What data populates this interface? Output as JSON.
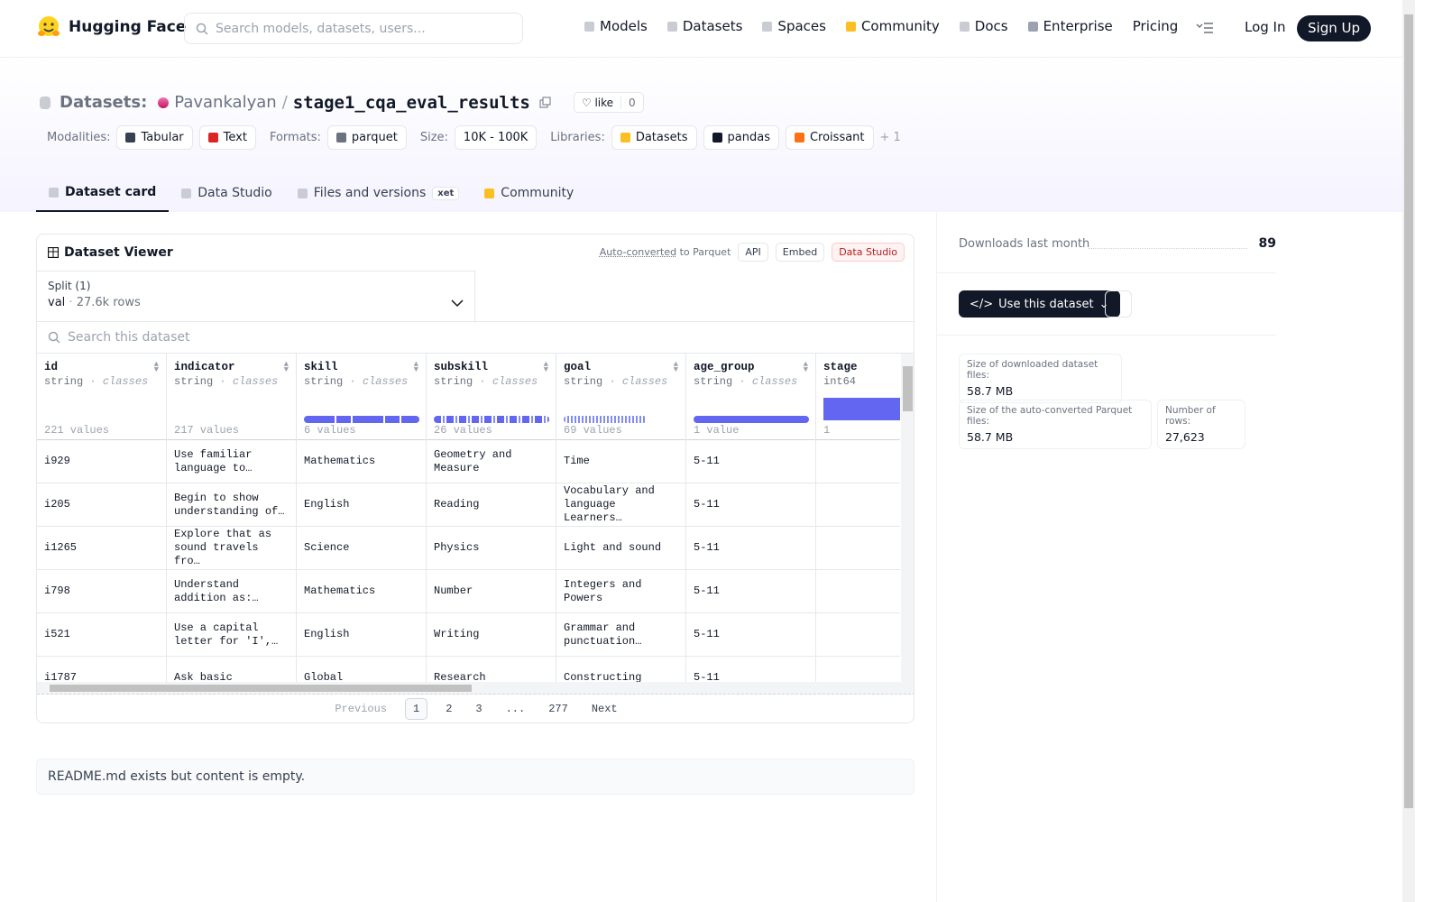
{
  "nav": {
    "brand": "Hugging Face",
    "search_placeholder": "Search models, datasets, users...",
    "links": [
      "Models",
      "Datasets",
      "Spaces",
      "Community",
      "Docs",
      "Enterprise",
      "Pricing"
    ],
    "login": "Log In",
    "signup": "Sign Up"
  },
  "header": {
    "section": "Datasets:",
    "owner": "Pavankalyan",
    "separator": "/",
    "repo": "stage1_cqa_eval_results",
    "like": "like",
    "likes": 0,
    "tags": [
      {
        "label": "Modalities:",
        "items": [
          "Tabular",
          "Text"
        ]
      },
      {
        "label": "Formats:",
        "items": [
          "parquet"
        ]
      },
      {
        "label": "Size:",
        "items": [
          "10K - 100K"
        ]
      },
      {
        "label": "Libraries:",
        "items": [
          "Datasets",
          "pandas",
          "Croissant"
        ]
      }
    ],
    "more": "+ 1"
  },
  "tabs": [
    "Dataset card",
    "Data Studio",
    "Files and versions",
    "Community"
  ],
  "xet": "xet",
  "viewer": {
    "title": "Dataset Viewer",
    "auto": "Auto-converted",
    "to": "to Parquet",
    "buttons": [
      "API",
      "Embed",
      "Data Studio"
    ],
    "split_label": "Split (1)",
    "split": "val",
    "dot": "·",
    "row_count": "27.6k rows",
    "search_placeholder": "Search this dataset",
    "columns": [
      {
        "name": "id",
        "type": "string",
        "kind": "classes",
        "stats": "221 values"
      },
      {
        "name": "indicator",
        "type": "string",
        "kind": "classes",
        "stats": "217 values"
      },
      {
        "name": "skill",
        "type": "string",
        "kind": "classes",
        "stats": "6 values"
      },
      {
        "name": "subskill",
        "type": "string",
        "kind": "classes",
        "stats": "26 values"
      },
      {
        "name": "goal",
        "type": "string",
        "kind": "classes",
        "stats": "69 values"
      },
      {
        "name": "age_group",
        "type": "string",
        "kind": "classes",
        "stats": "1 value"
      },
      {
        "name": "stage",
        "type": "int64",
        "stats": "1"
      }
    ],
    "rows": [
      [
        "i929",
        "Use familiar language to…",
        "Mathematics",
        "Geometry and Measure",
        "Time",
        "5-11"
      ],
      [
        "i205",
        "Begin to show understanding of…",
        "English",
        "Reading",
        "Vocabulary and language Learners…",
        "5-11"
      ],
      [
        "i1265",
        "Explore that as sound travels fro…",
        "Science",
        "Physics",
        "Light and sound",
        "5-11"
      ],
      [
        "i798",
        "Understand addition as:…",
        "Mathematics",
        "Number",
        "Integers and Powers",
        "5-11"
      ],
      [
        "i521",
        "Use a capital letter for 'I',…",
        "English",
        "Writing",
        "Grammar and punctuation…",
        "5-11"
      ],
      [
        "i1787",
        "Ask basic",
        "Global",
        "Research",
        "Constructing",
        "5-11"
      ]
    ],
    "pagination": {
      "prev": "Previous",
      "pages": [
        "1",
        "2",
        "3",
        "...",
        "277"
      ],
      "next": "Next"
    }
  },
  "readme": "README.md exists but content is empty.",
  "sidebar": {
    "downloads_label": "Downloads last month",
    "downloads": 89,
    "use": "Use this dataset",
    "size_download_label": "Size of downloaded dataset files:",
    "size_download": "58.7 MB",
    "size_parquet_label": "Size of the auto-converted Parquet files:",
    "size_parquet": "58.7 MB",
    "num_rows_label": "Number of rows:",
    "num_rows": "27,623"
  }
}
